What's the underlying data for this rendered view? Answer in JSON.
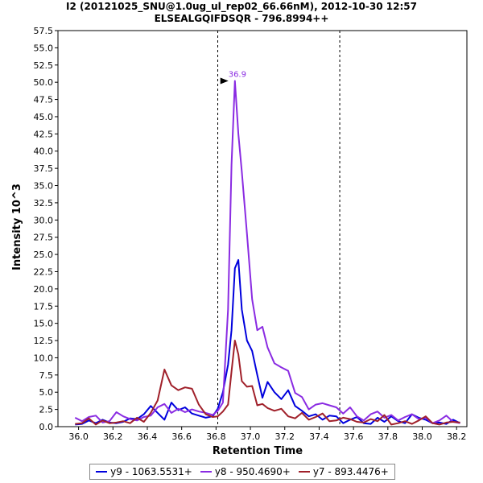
{
  "chart_data": {
    "type": "line",
    "title": "I2 (20121025_SNU@1.0ug_ul_rep02_66.66nM), 2012-10-30 12:57",
    "subtitle": "ELSEALGQIFDSQR - 796.8994++",
    "xlabel": "Retention Time",
    "ylabel": "Intensity 10^3",
    "xlim": [
      35.88,
      38.26
    ],
    "ylim": [
      0,
      57.5
    ],
    "x_ticks": [
      "36.0",
      "36.2",
      "36.4",
      "36.6",
      "36.8",
      "37.0",
      "37.2",
      "37.4",
      "37.6",
      "37.8",
      "38.0",
      "38.2"
    ],
    "x_tick_values": [
      36.0,
      36.2,
      36.4,
      36.6,
      36.8,
      37.0,
      37.2,
      37.4,
      37.6,
      37.8,
      38.0,
      38.2
    ],
    "y_ticks": [
      "0.0",
      "2.5",
      "5.0",
      "7.5",
      "10.0",
      "12.5",
      "15.0",
      "17.5",
      "20.0",
      "22.5",
      "25.0",
      "27.5",
      "30.0",
      "32.5",
      "35.0",
      "37.5",
      "40.0",
      "42.5",
      "45.0",
      "47.5",
      "50.0",
      "52.5",
      "55.0",
      "57.5"
    ],
    "y_tick_values": [
      0,
      2.5,
      5,
      7.5,
      10,
      12.5,
      15,
      17.5,
      20,
      22.5,
      25,
      27.5,
      30,
      32.5,
      35,
      37.5,
      40,
      42.5,
      45,
      47.5,
      50,
      52.5,
      55,
      57.5
    ],
    "boundaries": [
      36.81,
      37.52
    ],
    "peak_label": {
      "text": "36.9",
      "x": 36.9,
      "y": 50.2,
      "color": "#8a2be2"
    },
    "x": [
      35.98,
      36.02,
      36.06,
      36.1,
      36.14,
      36.18,
      36.22,
      36.26,
      36.3,
      36.34,
      36.38,
      36.42,
      36.46,
      36.5,
      36.54,
      36.58,
      36.62,
      36.66,
      36.7,
      36.74,
      36.78,
      36.81,
      36.84,
      36.87,
      36.89,
      36.91,
      36.93,
      36.95,
      36.98,
      37.01,
      37.04,
      37.07,
      37.1,
      37.14,
      37.18,
      37.22,
      37.26,
      37.3,
      37.34,
      37.38,
      37.42,
      37.46,
      37.5,
      37.54,
      37.58,
      37.62,
      37.66,
      37.7,
      37.74,
      37.78,
      37.82,
      37.86,
      37.9,
      37.94,
      37.98,
      38.02,
      38.06,
      38.1,
      38.14,
      38.18,
      38.22
    ],
    "series": [
      {
        "name": "y9 - 1063.5531+",
        "color": "#0000dd",
        "values": [
          0.3,
          0.4,
          0.9,
          0.5,
          1.0,
          0.6,
          0.5,
          0.7,
          1.2,
          1.1,
          1.8,
          3.0,
          2.0,
          1.0,
          3.5,
          2.4,
          2.8,
          1.9,
          1.6,
          1.3,
          1.5,
          2.6,
          5.0,
          9.0,
          14.0,
          23.0,
          24.2,
          17.0,
          12.5,
          11.0,
          7.5,
          4.2,
          6.5,
          5.0,
          4.0,
          5.3,
          3.0,
          2.3,
          1.5,
          1.8,
          1.0,
          1.6,
          1.5,
          0.5,
          1.0,
          1.4,
          0.5,
          0.4,
          1.3,
          0.7,
          1.5,
          0.8,
          0.5,
          1.8,
          1.3,
          1.0,
          0.5,
          0.6,
          0.4,
          1.0,
          0.5
        ]
      },
      {
        "name": "y8 - 950.4690+",
        "color": "#8a2be2",
        "values": [
          1.3,
          0.8,
          1.4,
          1.6,
          0.6,
          0.8,
          2.1,
          1.5,
          1.1,
          0.9,
          1.4,
          1.6,
          2.8,
          3.3,
          2.0,
          2.6,
          2.1,
          2.5,
          2.2,
          2.0,
          1.7,
          2.3,
          3.5,
          17.0,
          38.0,
          50.2,
          42.5,
          37.0,
          28.0,
          18.5,
          14.0,
          14.5,
          11.5,
          9.2,
          8.6,
          8.1,
          4.9,
          4.3,
          2.5,
          3.2,
          3.4,
          3.1,
          2.8,
          1.9,
          2.8,
          1.5,
          0.9,
          1.8,
          2.2,
          1.3,
          1.7,
          0.9,
          1.4,
          1.8,
          1.1,
          1.3,
          0.5,
          0.9,
          1.6,
          0.7,
          0.5
        ]
      },
      {
        "name": "y7 - 893.4476+",
        "color": "#a0202a",
        "values": [
          0.4,
          0.5,
          1.2,
          0.3,
          0.9,
          0.5,
          0.6,
          0.8,
          0.5,
          1.3,
          0.7,
          2.0,
          3.8,
          8.3,
          6.0,
          5.3,
          5.7,
          5.5,
          3.2,
          1.8,
          1.4,
          1.5,
          2.2,
          3.2,
          8.0,
          12.5,
          10.5,
          6.6,
          5.8,
          5.9,
          3.1,
          3.3,
          2.7,
          2.3,
          2.6,
          1.5,
          1.2,
          2.0,
          1.0,
          1.4,
          1.9,
          0.8,
          0.9,
          1.3,
          1.1,
          0.7,
          0.6,
          1.1,
          0.8,
          1.7,
          0.3,
          0.5,
          0.8,
          0.4,
          0.9,
          1.5,
          0.5,
          0.3,
          0.6,
          0.7,
          0.6
        ]
      }
    ]
  }
}
